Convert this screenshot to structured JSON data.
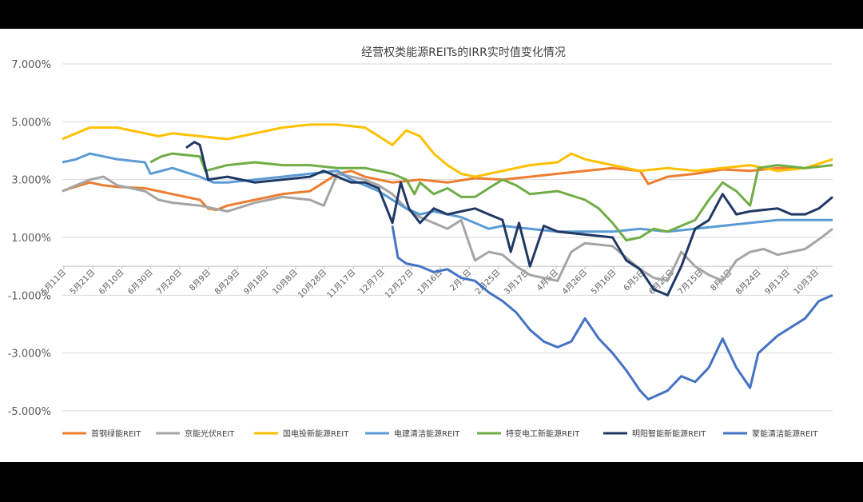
{
  "chart_data": {
    "type": "line",
    "title": "经营权类能源REITs的IRR实时值变化情况",
    "xlabel": "",
    "ylabel": "",
    "ylim": [
      -5.0,
      7.0
    ],
    "yticks": [
      "7.000%",
      "5.000%",
      "3.000%",
      "1.000%",
      "-1.000%",
      "-3.000%",
      "-5.000%"
    ],
    "ytick_values": [
      7,
      5,
      3,
      1,
      -1,
      -3,
      -5
    ],
    "xticks": [
      "5月11日",
      "5月21日",
      "6月10日",
      "6月30日",
      "7月20日",
      "8月9日",
      "8月29日",
      "9月18日",
      "10月8日",
      "10月28日",
      "11月17日",
      "12月7日",
      "12月27日",
      "1月16日",
      "2月5日",
      "2月25日",
      "3月17日",
      "4月6日",
      "4月26日",
      "5月16日",
      "6月5日",
      "6月25日",
      "7月15日",
      "8月4日",
      "8月24日",
      "9月13日",
      "10月3日"
    ],
    "x_range": [
      0,
      28
    ],
    "grid": true,
    "legend_position": "bottom",
    "series": [
      {
        "name": "首钢绿能REIT",
        "color": "#ED7D31",
        "points": [
          [
            0,
            2.6
          ],
          [
            0.3,
            2.7
          ],
          [
            1,
            2.9
          ],
          [
            1.5,
            2.8
          ],
          [
            2,
            2.75
          ],
          [
            3,
            2.7
          ],
          [
            3.5,
            2.6
          ],
          [
            4,
            2.5
          ],
          [
            4.5,
            2.4
          ],
          [
            5,
            2.3
          ],
          [
            5.3,
            2.0
          ],
          [
            5.6,
            1.95
          ],
          [
            6,
            2.1
          ],
          [
            7,
            2.3
          ],
          [
            8,
            2.5
          ],
          [
            9,
            2.6
          ],
          [
            9.5,
            2.9
          ],
          [
            10,
            3.2
          ],
          [
            10.5,
            3.3
          ],
          [
            11,
            3.1
          ],
          [
            11.5,
            3.0
          ],
          [
            12,
            2.9
          ],
          [
            12.5,
            2.95
          ],
          [
            13,
            3.0
          ],
          [
            14,
            2.9
          ],
          [
            15,
            3.05
          ],
          [
            16,
            3.0
          ],
          [
            17,
            3.1
          ],
          [
            18,
            3.2
          ],
          [
            19,
            3.3
          ],
          [
            20,
            3.4
          ],
          [
            21,
            3.3
          ],
          [
            21.3,
            2.85
          ],
          [
            22,
            3.1
          ],
          [
            23,
            3.2
          ],
          [
            24,
            3.35
          ],
          [
            25,
            3.3
          ],
          [
            26,
            3.4
          ],
          [
            27,
            3.4
          ],
          [
            27.5,
            3.45
          ]
        ]
      },
      {
        "name": "京能光伏REIT",
        "color": "#A5A5A5",
        "points": [
          [
            0,
            2.6
          ],
          [
            0.5,
            2.8
          ],
          [
            1,
            3.0
          ],
          [
            1.5,
            3.1
          ],
          [
            2,
            2.8
          ],
          [
            3,
            2.6
          ],
          [
            3.5,
            2.3
          ],
          [
            4,
            2.2
          ],
          [
            5,
            2.1
          ],
          [
            6,
            1.9
          ],
          [
            7,
            2.2
          ],
          [
            8,
            2.4
          ],
          [
            9,
            2.3
          ],
          [
            9.5,
            2.1
          ],
          [
            10,
            3.2
          ],
          [
            11,
            3.0
          ],
          [
            11.5,
            2.8
          ],
          [
            12,
            2.5
          ],
          [
            12.5,
            2.0
          ],
          [
            13,
            1.7
          ],
          [
            13.5,
            1.5
          ],
          [
            14,
            1.3
          ],
          [
            14.5,
            1.6
          ],
          [
            15,
            0.2
          ],
          [
            15.5,
            0.5
          ],
          [
            16,
            0.4
          ],
          [
            16.5,
            0.0
          ],
          [
            17,
            -0.3
          ],
          [
            18,
            -0.5
          ],
          [
            18.5,
            0.5
          ],
          [
            19,
            0.8
          ],
          [
            20,
            0.7
          ],
          [
            20.5,
            0.3
          ],
          [
            21,
            -0.1
          ],
          [
            21.5,
            -0.4
          ],
          [
            22,
            -0.5
          ],
          [
            22.5,
            0.5
          ],
          [
            23,
            0.0
          ],
          [
            23.5,
            -0.3
          ],
          [
            24,
            -0.5
          ],
          [
            24.5,
            0.2
          ],
          [
            25,
            0.5
          ],
          [
            25.5,
            0.6
          ],
          [
            26,
            0.4
          ],
          [
            27,
            0.6
          ],
          [
            27.6,
            1.0
          ],
          [
            28,
            1.3
          ]
        ]
      },
      {
        "name": "国电投新能源REIT",
        "color": "#FFC000",
        "points": [
          [
            0,
            4.4
          ],
          [
            0.5,
            4.6
          ],
          [
            1,
            4.8
          ],
          [
            2,
            4.8
          ],
          [
            3,
            4.6
          ],
          [
            3.5,
            4.5
          ],
          [
            4,
            4.6
          ],
          [
            5,
            4.5
          ],
          [
            6,
            4.4
          ],
          [
            7,
            4.6
          ],
          [
            8,
            4.8
          ],
          [
            9,
            4.9
          ],
          [
            10,
            4.9
          ],
          [
            11,
            4.8
          ],
          [
            11.5,
            4.5
          ],
          [
            12,
            4.2
          ],
          [
            12.5,
            4.7
          ],
          [
            13,
            4.5
          ],
          [
            13.5,
            3.9
          ],
          [
            14,
            3.5
          ],
          [
            14.5,
            3.2
          ],
          [
            15,
            3.1
          ],
          [
            16,
            3.3
          ],
          [
            17,
            3.5
          ],
          [
            18,
            3.6
          ],
          [
            18.5,
            3.9
          ],
          [
            19,
            3.7
          ],
          [
            20,
            3.5
          ],
          [
            21,
            3.3
          ],
          [
            22,
            3.4
          ],
          [
            23,
            3.3
          ],
          [
            24,
            3.4
          ],
          [
            25,
            3.5
          ],
          [
            26,
            3.3
          ],
          [
            27,
            3.4
          ],
          [
            28,
            3.7
          ]
        ]
      },
      {
        "name": "电建清洁能源REIT",
        "color": "#5B9BD5",
        "points": [
          [
            0,
            3.6
          ],
          [
            0.5,
            3.7
          ],
          [
            1,
            3.9
          ],
          [
            1.5,
            3.8
          ],
          [
            2,
            3.7
          ],
          [
            3,
            3.6
          ],
          [
            3.2,
            3.2
          ],
          [
            4,
            3.4
          ],
          [
            5,
            3.1
          ],
          [
            5.5,
            2.9
          ],
          [
            6,
            2.9
          ],
          [
            7,
            3.0
          ],
          [
            8,
            3.1
          ],
          [
            9,
            3.2
          ],
          [
            10,
            3.3
          ],
          [
            10.5,
            3.0
          ],
          [
            11,
            2.8
          ],
          [
            11.5,
            2.6
          ],
          [
            12,
            2.3
          ],
          [
            12.5,
            2.0
          ],
          [
            13,
            1.8
          ],
          [
            13.5,
            1.9
          ],
          [
            14,
            1.8
          ],
          [
            14.5,
            1.7
          ],
          [
            15,
            1.5
          ],
          [
            15.5,
            1.3
          ],
          [
            16,
            1.4
          ],
          [
            17,
            1.3
          ],
          [
            18,
            1.2
          ],
          [
            19,
            1.2
          ],
          [
            20,
            1.2
          ],
          [
            21,
            1.3
          ],
          [
            22,
            1.2
          ],
          [
            23,
            1.3
          ],
          [
            24,
            1.4
          ],
          [
            25,
            1.5
          ],
          [
            26,
            1.6
          ],
          [
            27,
            1.6
          ],
          [
            28,
            1.6
          ]
        ]
      },
      {
        "name": "特变电工新能源REIT",
        "color": "#70AD47",
        "points": [
          [
            3.2,
            3.6
          ],
          [
            3.6,
            3.8
          ],
          [
            4,
            3.9
          ],
          [
            5,
            3.8
          ],
          [
            5.2,
            3.3
          ],
          [
            6,
            3.5
          ],
          [
            7,
            3.6
          ],
          [
            8,
            3.5
          ],
          [
            9,
            3.5
          ],
          [
            10,
            3.4
          ],
          [
            11,
            3.4
          ],
          [
            11.5,
            3.3
          ],
          [
            12,
            3.2
          ],
          [
            12.5,
            3.0
          ],
          [
            12.8,
            2.5
          ],
          [
            13,
            2.9
          ],
          [
            13.5,
            2.5
          ],
          [
            14,
            2.7
          ],
          [
            14.5,
            2.4
          ],
          [
            15,
            2.4
          ],
          [
            15.5,
            2.7
          ],
          [
            16,
            3.0
          ],
          [
            16.5,
            2.8
          ],
          [
            17,
            2.5
          ],
          [
            18,
            2.6
          ],
          [
            19,
            2.3
          ],
          [
            19.5,
            2.0
          ],
          [
            20,
            1.5
          ],
          [
            20.5,
            0.9
          ],
          [
            21,
            1.0
          ],
          [
            21.5,
            1.3
          ],
          [
            22,
            1.2
          ],
          [
            23,
            1.6
          ],
          [
            23.5,
            2.3
          ],
          [
            24,
            2.9
          ],
          [
            24.5,
            2.6
          ],
          [
            25,
            2.1
          ],
          [
            25.3,
            3.4
          ],
          [
            26,
            3.5
          ],
          [
            27,
            3.4
          ],
          [
            28,
            3.5
          ]
        ]
      },
      {
        "name": "明阳智能新能源REIT",
        "color": "#203864",
        "points": [
          [
            4.5,
            4.1
          ],
          [
            4.8,
            4.3
          ],
          [
            5,
            4.2
          ],
          [
            5.3,
            3.0
          ],
          [
            6,
            3.1
          ],
          [
            7,
            2.9
          ],
          [
            8,
            3.0
          ],
          [
            9,
            3.1
          ],
          [
            9.5,
            3.3
          ],
          [
            10,
            3.1
          ],
          [
            10.5,
            2.9
          ],
          [
            11,
            2.9
          ],
          [
            11.5,
            2.7
          ],
          [
            12,
            1.5
          ],
          [
            12.3,
            2.9
          ],
          [
            12.6,
            2.0
          ],
          [
            13,
            1.5
          ],
          [
            13.5,
            2.0
          ],
          [
            14,
            1.8
          ],
          [
            15,
            2.0
          ],
          [
            15.5,
            1.8
          ],
          [
            16,
            1.6
          ],
          [
            16.3,
            0.5
          ],
          [
            16.6,
            1.5
          ],
          [
            17,
            0.0
          ],
          [
            17.5,
            1.4
          ],
          [
            18,
            1.2
          ],
          [
            19,
            1.1
          ],
          [
            20,
            1.0
          ],
          [
            20.5,
            0.2
          ],
          [
            21,
            -0.1
          ],
          [
            21.5,
            -0.8
          ],
          [
            22,
            -1.0
          ],
          [
            22.5,
            0.0
          ],
          [
            23,
            1.3
          ],
          [
            23.5,
            1.6
          ],
          [
            24,
            2.5
          ],
          [
            24.5,
            1.8
          ],
          [
            25,
            1.9
          ],
          [
            26,
            2.0
          ],
          [
            26.5,
            1.8
          ],
          [
            27,
            1.8
          ],
          [
            27.5,
            2.0
          ],
          [
            28,
            2.4
          ]
        ]
      },
      {
        "name": "蒙能清洁能源REIT",
        "color": "#4472C4",
        "points": [
          [
            12,
            1.4
          ],
          [
            12.2,
            0.3
          ],
          [
            12.5,
            0.1
          ],
          [
            13,
            0.0
          ],
          [
            13.5,
            -0.2
          ],
          [
            14,
            -0.1
          ],
          [
            14.5,
            -0.4
          ],
          [
            15,
            -0.5
          ],
          [
            15.5,
            -0.9
          ],
          [
            16,
            -1.2
          ],
          [
            16.5,
            -1.6
          ],
          [
            17,
            -2.2
          ],
          [
            17.5,
            -2.6
          ],
          [
            18,
            -2.8
          ],
          [
            18.5,
            -2.6
          ],
          [
            19,
            -1.8
          ],
          [
            19.5,
            -2.5
          ],
          [
            20,
            -3.0
          ],
          [
            20.5,
            -3.6
          ],
          [
            21,
            -4.3
          ],
          [
            21.3,
            -4.6
          ],
          [
            22,
            -4.3
          ],
          [
            22.5,
            -3.8
          ],
          [
            23,
            -4.0
          ],
          [
            23.5,
            -3.5
          ],
          [
            24,
            -2.5
          ],
          [
            24.5,
            -3.5
          ],
          [
            25,
            -4.2
          ],
          [
            25.3,
            -3.0
          ],
          [
            26,
            -2.4
          ],
          [
            27,
            -1.8
          ],
          [
            27.5,
            -1.2
          ],
          [
            28,
            -1.0
          ]
        ]
      }
    ]
  }
}
